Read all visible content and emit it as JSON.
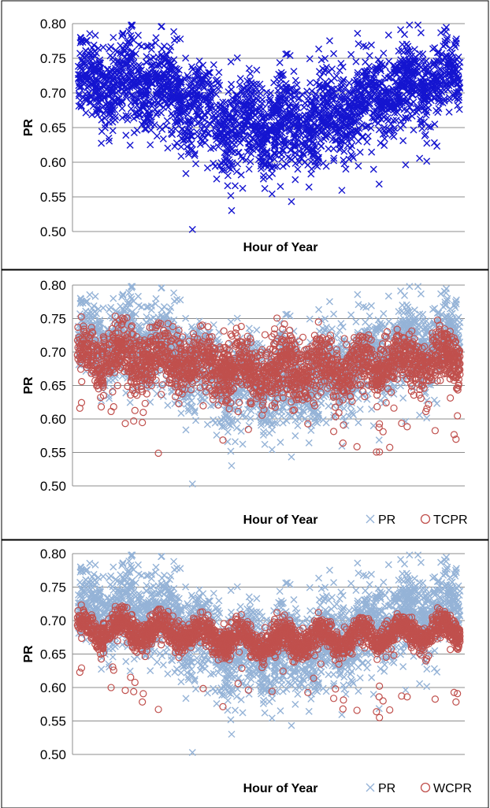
{
  "chart_data": [
    {
      "type": "scatter",
      "title": "",
      "xlabel": "Hour of Year",
      "ylabel": "PR",
      "ylim": [
        0.5,
        0.8
      ],
      "yticks": [
        "0.80",
        "0.75",
        "0.70",
        "0.65",
        "0.60",
        "0.55",
        "0.50"
      ],
      "grid": true,
      "legend": null,
      "series": [
        {
          "marker": "x",
          "color": "#1515d0",
          "seasonal_mean": [
            [
              0,
              0.72
            ],
            [
              0.1,
              0.715
            ],
            [
              0.2,
              0.71
            ],
            [
              0.3,
              0.685
            ],
            [
              0.4,
              0.655
            ],
            [
              0.5,
              0.648
            ],
            [
              0.6,
              0.655
            ],
            [
              0.7,
              0.675
            ],
            [
              0.8,
              0.695
            ],
            [
              0.9,
              0.715
            ],
            [
              1.0,
              0.722
            ]
          ],
          "spread": [
            [
              0,
              0.05
            ],
            [
              0.25,
              0.06
            ],
            [
              0.45,
              0.065
            ],
            [
              0.55,
              0.065
            ],
            [
              0.75,
              0.06
            ],
            [
              1.0,
              0.05
            ]
          ],
          "point_count": 2600
        }
      ]
    },
    {
      "type": "scatter",
      "title": "",
      "xlabel": "Hour of Year",
      "ylabel": "PR",
      "ylim": [
        0.5,
        0.8
      ],
      "yticks": [
        "0.80",
        "0.75",
        "0.70",
        "0.65",
        "0.60",
        "0.55",
        "0.50"
      ],
      "grid": true,
      "legend": "bottom-right",
      "series": [
        {
          "name": "PR",
          "marker": "x",
          "color": "#95b3d7",
          "seasonal_mean": [
            [
              0,
              0.72
            ],
            [
              0.1,
              0.715
            ],
            [
              0.2,
              0.71
            ],
            [
              0.3,
              0.685
            ],
            [
              0.4,
              0.655
            ],
            [
              0.5,
              0.648
            ],
            [
              0.6,
              0.655
            ],
            [
              0.7,
              0.675
            ],
            [
              0.8,
              0.695
            ],
            [
              0.9,
              0.715
            ],
            [
              1.0,
              0.722
            ]
          ],
          "spread": [
            [
              0,
              0.05
            ],
            [
              0.25,
              0.06
            ],
            [
              0.45,
              0.065
            ],
            [
              0.55,
              0.065
            ],
            [
              0.75,
              0.06
            ],
            [
              1.0,
              0.05
            ]
          ],
          "point_count": 2600
        },
        {
          "name": "TCPR",
          "marker": "o",
          "color": "#c0504d",
          "seasonal_mean": [
            [
              0,
              0.695
            ],
            [
              0.25,
              0.685
            ],
            [
              0.5,
              0.672
            ],
            [
              0.75,
              0.68
            ],
            [
              1.0,
              0.69
            ]
          ],
          "spread": [
            [
              0,
              0.035
            ],
            [
              0.5,
              0.045
            ],
            [
              1.0,
              0.035
            ]
          ],
          "point_count": 2400
        }
      ]
    },
    {
      "type": "scatter",
      "title": "",
      "xlabel": "Hour of Year",
      "ylabel": "PR",
      "ylim": [
        0.5,
        0.8
      ],
      "yticks": [
        "0.80",
        "0.75",
        "0.70",
        "0.65",
        "0.60",
        "0.55",
        "0.50"
      ],
      "grid": true,
      "legend": "bottom-right",
      "series": [
        {
          "name": "PR",
          "marker": "x",
          "color": "#95b3d7",
          "seasonal_mean": [
            [
              0,
              0.72
            ],
            [
              0.1,
              0.715
            ],
            [
              0.2,
              0.71
            ],
            [
              0.3,
              0.685
            ],
            [
              0.4,
              0.655
            ],
            [
              0.5,
              0.648
            ],
            [
              0.6,
              0.655
            ],
            [
              0.7,
              0.675
            ],
            [
              0.8,
              0.695
            ],
            [
              0.9,
              0.715
            ],
            [
              1.0,
              0.722
            ]
          ],
          "spread": [
            [
              0,
              0.05
            ],
            [
              0.25,
              0.06
            ],
            [
              0.45,
              0.065
            ],
            [
              0.55,
              0.065
            ],
            [
              0.75,
              0.06
            ],
            [
              1.0,
              0.05
            ]
          ],
          "point_count": 2600
        },
        {
          "name": "WCPR",
          "marker": "o",
          "color": "#c0504d",
          "seasonal_mean": [
            [
              0,
              0.688
            ],
            [
              0.25,
              0.682
            ],
            [
              0.5,
              0.668
            ],
            [
              0.75,
              0.677
            ],
            [
              1.0,
              0.686
            ]
          ],
          "spread": [
            [
              0,
              0.018
            ],
            [
              0.5,
              0.022
            ],
            [
              1.0,
              0.018
            ]
          ],
          "point_count": 2400
        }
      ]
    }
  ]
}
